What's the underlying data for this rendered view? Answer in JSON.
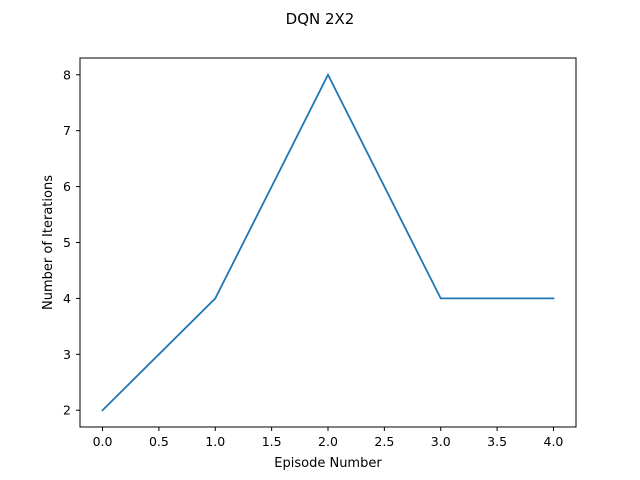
{
  "chart_data": {
    "type": "line",
    "title": "DQN 2X2",
    "xlabel": "Episode Number",
    "ylabel": "Number of Iterations",
    "x": [
      0,
      1,
      2,
      3,
      4
    ],
    "series": [
      {
        "values": [
          2,
          4,
          8,
          4,
          4
        ],
        "color": "#1f77b4"
      }
    ],
    "xlim": [
      -0.2,
      4.2
    ],
    "ylim": [
      1.7,
      8.3
    ],
    "xticks": [
      "0.0",
      "0.5",
      "1.0",
      "1.5",
      "2.0",
      "2.5",
      "3.0",
      "3.5",
      "4.0"
    ],
    "yticks": [
      "2",
      "3",
      "4",
      "5",
      "6",
      "7",
      "8"
    ],
    "grid": false,
    "legend": "none"
  }
}
